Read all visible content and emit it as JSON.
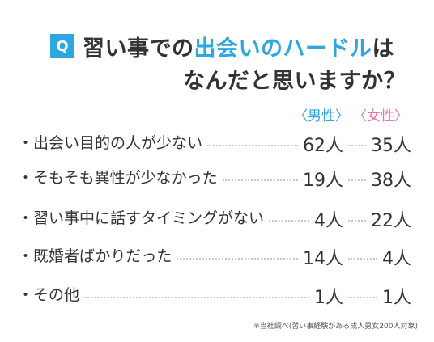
{
  "title": {
    "badge": "Q",
    "line1_part1": "習い事での",
    "line1_highlight": "出会いのハードル",
    "line1_part2": "は",
    "line2": "なんだと思いますか？"
  },
  "colors": {
    "accent_blue": "#2ea7e0",
    "accent_pink": "#f1719e",
    "text": "#333333"
  },
  "footnote": "※当社調べ(習い事経験がある成人男女200人対象)",
  "chart_data": {
    "type": "table",
    "series": [
      {
        "name": "〈男性〉",
        "values": [
          62,
          19,
          4,
          14,
          1
        ]
      },
      {
        "name": "〈女性〉",
        "values": [
          35,
          38,
          22,
          4,
          1
        ]
      }
    ],
    "categories": [
      "・出会い目的の人が少ない",
      "・そもそも異性が少なかった",
      "・習い事中に話すタイミングがない",
      "・既婚者ばかりだった",
      "・その他"
    ],
    "value_labels": {
      "male": [
        "62人",
        "19人",
        "4人",
        "14人",
        "1人"
      ],
      "female": [
        "35人",
        "38人",
        "22人",
        "4人",
        "1人"
      ]
    }
  }
}
